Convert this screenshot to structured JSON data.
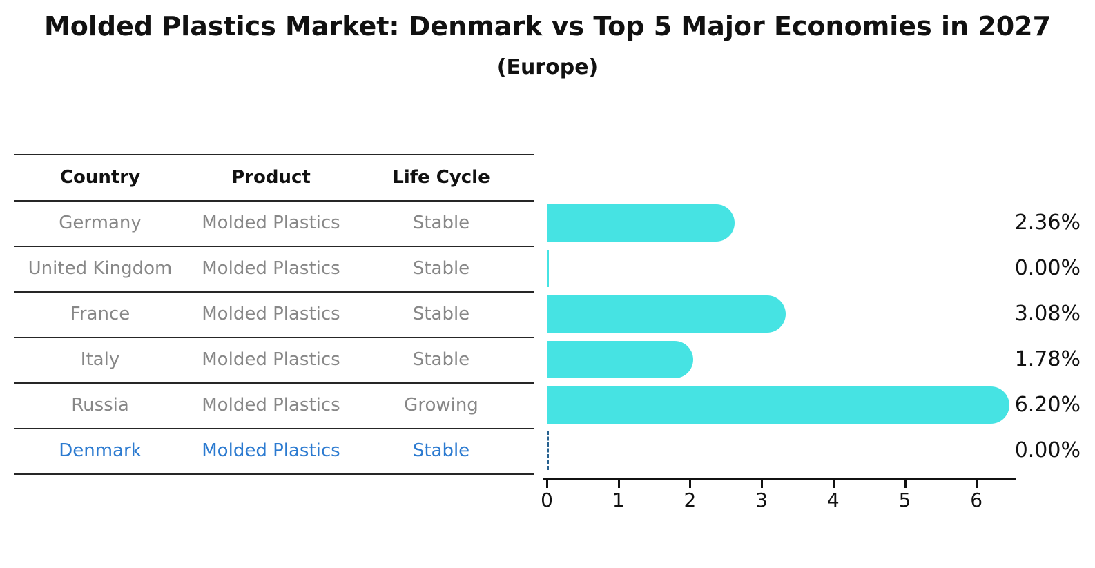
{
  "title": "Molded Plastics Market: Denmark vs Top 5 Major Economies in 2027",
  "subtitle": "(Europe)",
  "table": {
    "columns": [
      "Country",
      "Product",
      "Life Cycle"
    ],
    "rows": [
      {
        "country": "Germany",
        "product": "Molded Plastics",
        "life_cycle": "Stable",
        "highlight": false
      },
      {
        "country": "United Kingdom",
        "product": "Molded Plastics",
        "life_cycle": "Stable",
        "highlight": false
      },
      {
        "country": "France",
        "product": "Molded Plastics",
        "life_cycle": "Stable",
        "highlight": false
      },
      {
        "country": "Italy",
        "product": "Molded Plastics",
        "life_cycle": "Stable",
        "highlight": false
      },
      {
        "country": "Russia",
        "product": "Molded Plastics",
        "life_cycle": "Growing",
        "highlight": false
      },
      {
        "country": "Denmark",
        "product": "Molded Plastics",
        "life_cycle": "Stable",
        "highlight": true
      }
    ]
  },
  "chart_data": {
    "type": "bar",
    "orientation": "horizontal",
    "title": "Molded Plastics Market: Denmark vs Top 5 Major Economies in 2027 (Europe)",
    "categories": [
      "Germany",
      "United Kingdom",
      "France",
      "Italy",
      "Russia",
      "Denmark"
    ],
    "values": [
      2.36,
      0.0,
      3.08,
      1.78,
      6.2,
      0.0
    ],
    "value_labels": [
      "2.36%",
      "0.00%",
      "3.08%",
      "1.78%",
      "6.20%",
      "0.00%"
    ],
    "x_ticks": [
      "0",
      "1",
      "2",
      "3",
      "4",
      "5",
      "6"
    ],
    "xlim": [
      0,
      6.55
    ],
    "grid": false,
    "legend": "none",
    "bar_color": "#46e3e3",
    "highlight_color": "#2b7ad0",
    "highlight_index": 5,
    "highlight_style": "dashed-zero-line"
  }
}
